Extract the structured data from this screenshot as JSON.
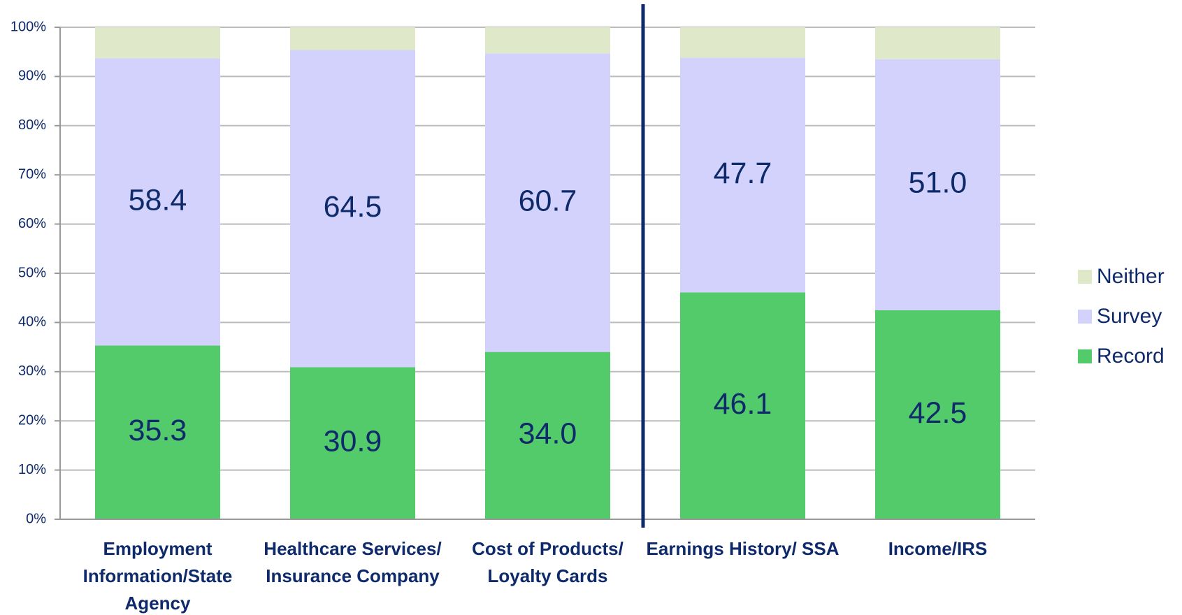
{
  "chart_data": {
    "type": "stacked_bar_percent",
    "categories": [
      "Employment Information/State Agency",
      "Healthcare Services/ Insurance Company",
      "Cost of Products/ Loyalty Cards",
      "Earnings History/ SSA",
      "Income/IRS"
    ],
    "series": [
      {
        "name": "Record",
        "color": "#53cb6b",
        "values": [
          35.3,
          30.9,
          34.0,
          46.1,
          42.5
        ],
        "value_labels": [
          "35.3",
          "30.9",
          "34.0",
          "46.1",
          "42.5"
        ]
      },
      {
        "name": "Survey",
        "color": "#d2d2fc",
        "values": [
          58.4,
          64.5,
          60.7,
          47.7,
          51.0
        ],
        "value_labels": [
          "58.4",
          "64.5",
          "60.7",
          "47.7",
          "51.0"
        ]
      },
      {
        "name": "Neither",
        "color": "#dfe8c8",
        "values": [
          6.3,
          4.6,
          5.3,
          6.2,
          6.5
        ]
      }
    ],
    "ylim": [
      0,
      100
    ],
    "yticks": [
      {
        "value": 0,
        "label": "0%"
      },
      {
        "value": 10,
        "label": "10%"
      },
      {
        "value": 20,
        "label": "20%"
      },
      {
        "value": 30,
        "label": "30%"
      },
      {
        "value": 40,
        "label": "40%"
      },
      {
        "value": 50,
        "label": "50%"
      },
      {
        "value": 60,
        "label": "60%"
      },
      {
        "value": 70,
        "label": "70%"
      },
      {
        "value": 80,
        "label": "80%"
      },
      {
        "value": 90,
        "label": "90%"
      },
      {
        "value": 100,
        "label": "100%"
      }
    ],
    "grid": true,
    "legend": "right"
  }
}
